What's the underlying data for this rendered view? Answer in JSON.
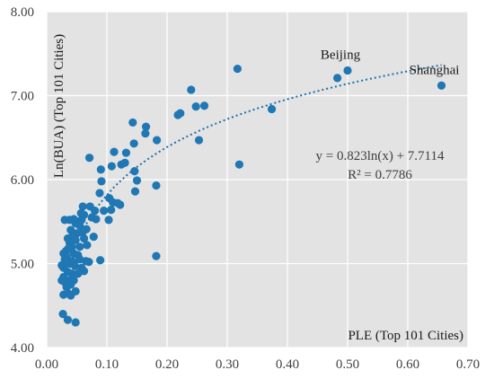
{
  "chart_data": {
    "type": "scatter",
    "xlabel": "PLE (Top 101 Cities)",
    "ylabel": "Ln(BUA) (Top 101 Cities)",
    "xlim": [
      0,
      0.7
    ],
    "ylim": [
      4.0,
      8.0
    ],
    "x_ticks": [
      "0.00",
      "0.10",
      "0.20",
      "0.30",
      "0.40",
      "0.50",
      "0.60",
      "0.70"
    ],
    "y_ticks": [
      "4.00",
      "5.00",
      "6.00",
      "7.00",
      "8.00"
    ],
    "grid": true,
    "colors": {
      "plot_bg": "#e3e3e3",
      "points": "#1f77b4",
      "trendline": "#1f6fa8"
    },
    "trendline": {
      "type": "logarithmic",
      "slope": 0.823,
      "intercept": 7.7114,
      "equation": "y = 0.823ln(x) + 7.7114",
      "r_squared": "R² = 0.7786"
    },
    "labels": [
      {
        "text": "Beijing",
        "x": 0.5,
        "y": 7.3
      },
      {
        "text": "Shanghai",
        "x": 0.656,
        "y": 7.12
      }
    ],
    "points": [
      [
        0.656,
        7.12
      ],
      [
        0.5,
        7.3
      ],
      [
        0.483,
        7.21
      ],
      [
        0.374,
        6.84
      ],
      [
        0.317,
        7.32
      ],
      [
        0.32,
        6.18
      ],
      [
        0.24,
        7.07
      ],
      [
        0.262,
        6.88
      ],
      [
        0.248,
        6.87
      ],
      [
        0.222,
        6.79
      ],
      [
        0.218,
        6.77
      ],
      [
        0.253,
        6.47
      ],
      [
        0.165,
        6.63
      ],
      [
        0.164,
        6.55
      ],
      [
        0.143,
        6.68
      ],
      [
        0.183,
        6.47
      ],
      [
        0.145,
        6.43
      ],
      [
        0.132,
        6.32
      ],
      [
        0.112,
        6.33
      ],
      [
        0.124,
        6.18
      ],
      [
        0.13,
        6.2
      ],
      [
        0.108,
        6.16
      ],
      [
        0.071,
        6.26
      ],
      [
        0.09,
        6.12
      ],
      [
        0.146,
        6.1
      ],
      [
        0.15,
        5.99
      ],
      [
        0.147,
        5.86
      ],
      [
        0.182,
        5.93
      ],
      [
        0.182,
        5.09
      ],
      [
        0.091,
        5.98
      ],
      [
        0.104,
        5.78
      ],
      [
        0.11,
        5.73
      ],
      [
        0.118,
        5.72
      ],
      [
        0.107,
        5.64
      ],
      [
        0.095,
        5.63
      ],
      [
        0.103,
        5.52
      ],
      [
        0.122,
        5.7
      ],
      [
        0.088,
        5.84
      ],
      [
        0.072,
        5.68
      ],
      [
        0.075,
        5.55
      ],
      [
        0.082,
        5.53
      ],
      [
        0.08,
        5.63
      ],
      [
        0.06,
        5.68
      ],
      [
        0.058,
        5.52
      ],
      [
        0.052,
        5.5
      ],
      [
        0.048,
        5.48
      ],
      [
        0.045,
        5.53
      ],
      [
        0.038,
        5.52
      ],
      [
        0.03,
        5.52
      ],
      [
        0.055,
        5.45
      ],
      [
        0.062,
        5.58
      ],
      [
        0.066,
        5.41
      ],
      [
        0.06,
        5.38
      ],
      [
        0.05,
        5.36
      ],
      [
        0.04,
        5.4
      ],
      [
        0.043,
        5.33
      ],
      [
        0.035,
        5.3
      ],
      [
        0.038,
        5.25
      ],
      [
        0.042,
        5.2
      ],
      [
        0.036,
        5.18
      ],
      [
        0.032,
        5.15
      ],
      [
        0.028,
        5.12
      ],
      [
        0.045,
        5.12
      ],
      [
        0.052,
        5.1
      ],
      [
        0.048,
        5.28
      ],
      [
        0.03,
        5.05
      ],
      [
        0.033,
        5.08
      ],
      [
        0.025,
        4.98
      ],
      [
        0.028,
        4.95
      ],
      [
        0.038,
        5.0
      ],
      [
        0.042,
        5.03
      ],
      [
        0.055,
        5.2
      ],
      [
        0.062,
        5.3
      ],
      [
        0.067,
        5.22
      ],
      [
        0.07,
        5.02
      ],
      [
        0.065,
        5.03
      ],
      [
        0.058,
        4.95
      ],
      [
        0.062,
        4.91
      ],
      [
        0.055,
        5.05
      ],
      [
        0.089,
        5.04
      ],
      [
        0.078,
        5.32
      ],
      [
        0.047,
        4.97
      ],
      [
        0.042,
        4.88
      ],
      [
        0.035,
        4.9
      ],
      [
        0.028,
        4.84
      ],
      [
        0.03,
        4.78
      ],
      [
        0.033,
        4.72
      ],
      [
        0.038,
        4.8
      ],
      [
        0.045,
        4.8
      ],
      [
        0.04,
        4.75
      ],
      [
        0.035,
        4.65
      ],
      [
        0.028,
        4.63
      ],
      [
        0.04,
        4.62
      ],
      [
        0.048,
        4.67
      ],
      [
        0.025,
        4.8
      ],
      [
        0.027,
        4.4
      ],
      [
        0.035,
        4.33
      ],
      [
        0.048,
        4.3
      ],
      [
        0.044,
        5.0
      ],
      [
        0.052,
        4.88
      ],
      [
        0.057,
        5.6
      ]
    ]
  }
}
